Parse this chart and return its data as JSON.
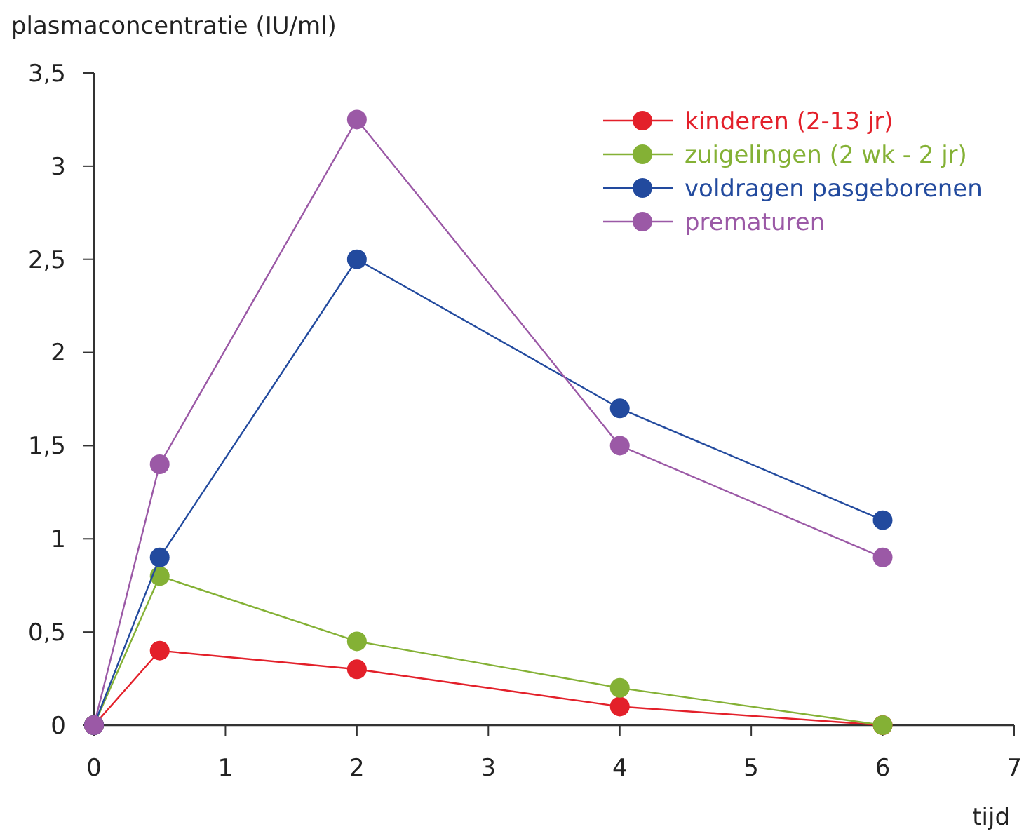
{
  "chart_data": {
    "type": "line",
    "ylabel": "plasmaconcentratie (IU/ml)",
    "xlabel": "tijd",
    "x": [
      0,
      0.5,
      2,
      4,
      6
    ],
    "series": [
      {
        "name": "kinderen (2-13 jr)",
        "color": "#e3202a",
        "values": [
          0,
          0.4,
          0.3,
          0.1,
          0
        ]
      },
      {
        "name": "zuigelingen (2 wk - 2 jr)",
        "color": "#84b135",
        "values": [
          0,
          0.8,
          0.45,
          0.2,
          0
        ]
      },
      {
        "name": "voldragen pasgeborenen",
        "color": "#224a9e",
        "values": [
          0,
          0.9,
          2.5,
          1.7,
          1.1
        ]
      },
      {
        "name": "prematuren",
        "color": "#9b59a6",
        "values": [
          0,
          1.4,
          3.25,
          1.5,
          0.9
        ]
      }
    ],
    "xlim": [
      0,
      7
    ],
    "xticks": [
      0,
      1,
      2,
      3,
      4,
      5,
      6,
      7
    ],
    "ylim": [
      0,
      3.5
    ],
    "yticks": [
      0,
      {
        "value": 0.5,
        "label": "0,5"
      },
      1,
      {
        "value": 1.5,
        "label": "1,5"
      },
      2,
      {
        "value": 2.5,
        "label": "2,5"
      },
      3,
      {
        "value": 3.5,
        "label": "3,5"
      }
    ],
    "legend": "top right",
    "marker": "circle",
    "line_style": "solid"
  }
}
